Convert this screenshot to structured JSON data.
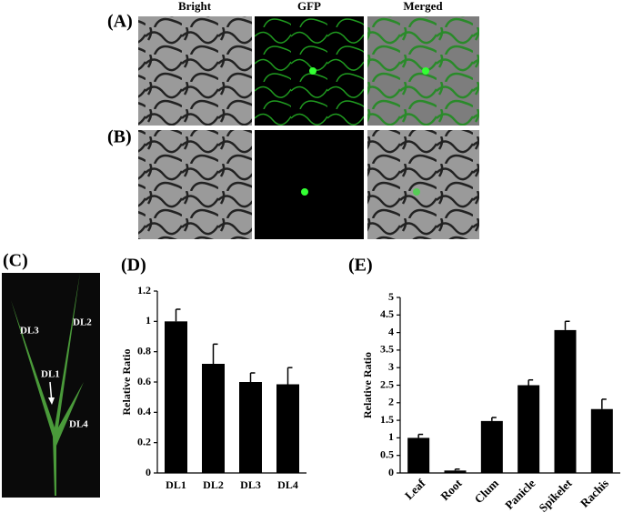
{
  "figure": {
    "panel_labels": [
      "(A)",
      "(B)",
      "(C)",
      "(D)",
      "(E)"
    ],
    "column_titles": [
      "Bright",
      "GFP",
      "Merged"
    ],
    "leaf_labels": [
      "DL1",
      "DL2",
      "DL3",
      "DL4"
    ]
  },
  "chart_data": [
    {
      "type": "bar",
      "y_label": "Relative Ratio",
      "color": "#000000",
      "categories": [
        "DL1",
        "DL2",
        "DL3",
        "DL4"
      ],
      "values": [
        1,
        0.72,
        0.6,
        0.585
      ],
      "errors": [
        0.08,
        0.13,
        0.06,
        0.11
      ],
      "ylim": [
        0,
        1.2
      ],
      "yticks": [
        0,
        0.2,
        0.4,
        0.6,
        0.8,
        1,
        1.2
      ]
    },
    {
      "type": "bar",
      "y_label": "Relative Ratio",
      "color": "#000000",
      "categories": [
        "Leaf",
        "Root",
        "Clum",
        "Panicle",
        "Spikelet",
        "Rachis"
      ],
      "values": [
        1,
        0.07,
        1.48,
        2.5,
        4.07,
        1.82
      ],
      "errors": [
        0.1,
        0.04,
        0.1,
        0.15,
        0.25,
        0.28
      ],
      "ylim": [
        0,
        5
      ],
      "yticks": [
        0,
        0.5,
        1,
        1.5,
        2,
        2.5,
        3,
        3.5,
        4,
        4.5,
        5
      ]
    }
  ]
}
